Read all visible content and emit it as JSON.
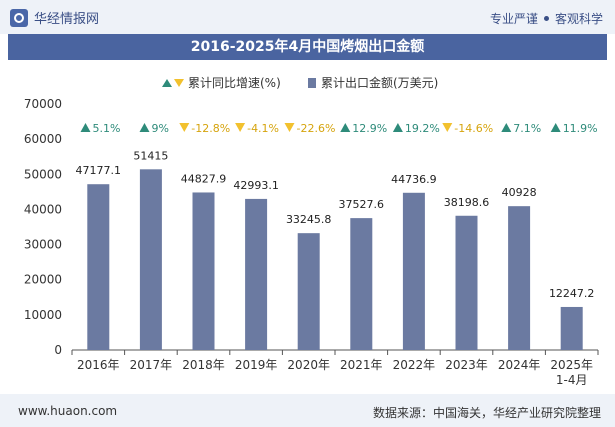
{
  "header": {
    "brand": "华经情报网",
    "tagline_left": "专业严谨",
    "tagline_right": "客观科学"
  },
  "title": "2016-2025年4月中国烤烟出口金额",
  "legend": {
    "growth_label": "累计同比增速(%)",
    "value_label": "累计出口金额(万美元)"
  },
  "footer": {
    "site": "www.huaon.com",
    "source": "数据来源：中国海关，华经产业研究院整理"
  },
  "colors": {
    "bar": "#6b7aa1",
    "up": "#2e8b7a",
    "down": "#f2c12e",
    "title_bg": "#4a64a0"
  },
  "chart_data": {
    "type": "bar",
    "categories": [
      "2016年",
      "2017年",
      "2018年",
      "2019年",
      "2020年",
      "2021年",
      "2022年",
      "2023年",
      "2024年",
      "2025年\n1-4月"
    ],
    "series": [
      {
        "name": "累计出口金额(万美元)",
        "values": [
          47177.1,
          51415,
          44827.9,
          42993.1,
          33245.8,
          37527.6,
          44736.9,
          38198.6,
          40928,
          12247.2
        ],
        "labels": [
          "47177.1",
          "51415",
          "44827.9",
          "42993.1",
          "33245.8",
          "37527.6",
          "44736.9",
          "38198.6",
          "40928",
          "12247.2"
        ]
      },
      {
        "name": "累计同比增速(%)",
        "values": [
          5.1,
          9,
          -12.8,
          -4.1,
          -22.6,
          12.9,
          19.2,
          -14.6,
          7.1,
          11.9
        ],
        "labels": [
          "5.1%",
          "9%",
          "-12.8%",
          "-4.1%",
          "-22.6%",
          "12.9%",
          "19.2%",
          "-14.6%",
          "7.1%",
          "11.9%"
        ]
      }
    ],
    "y_ticks": [
      "0",
      "10000",
      "20000",
      "30000",
      "40000",
      "50000",
      "60000",
      "70000"
    ],
    "ylim": [
      0,
      70000
    ],
    "grid": false,
    "legend_position": "top-center"
  }
}
